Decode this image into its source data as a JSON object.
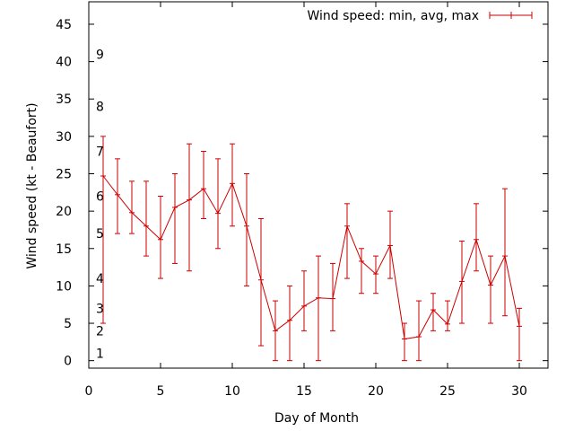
{
  "chart_data": {
    "type": "line",
    "xlabel": "Day of Month",
    "ylabel": "Wind speed (kt - Beaufort)",
    "xlim": [
      0,
      32
    ],
    "ylim": [
      -1,
      48
    ],
    "xticks": [
      0,
      5,
      10,
      15,
      20,
      25,
      30
    ],
    "yticks": [
      0,
      5,
      10,
      15,
      20,
      25,
      30,
      35,
      40,
      45
    ],
    "grid": false,
    "legend_position": "top-right",
    "series_color": "#cc0000",
    "beaufort_scale": [
      {
        "label": "1",
        "y": 1
      },
      {
        "label": "2",
        "y": 4
      },
      {
        "label": "3",
        "y": 7
      },
      {
        "label": "4",
        "y": 11
      },
      {
        "label": "5",
        "y": 17
      },
      {
        "label": "6",
        "y": 22
      },
      {
        "label": "7",
        "y": 28
      },
      {
        "label": "8",
        "y": 34
      },
      {
        "label": "9",
        "y": 41
      }
    ],
    "series": [
      {
        "name": "Wind speed: min, avg, max",
        "points": [
          {
            "x": 1,
            "avg": 24.7,
            "min": 5,
            "max": 30
          },
          {
            "x": 2,
            "avg": 22.2,
            "min": 17,
            "max": 27
          },
          {
            "x": 3,
            "avg": 19.8,
            "min": 17,
            "max": 24
          },
          {
            "x": 4,
            "avg": 18.0,
            "min": 14,
            "max": 24
          },
          {
            "x": 5,
            "avg": 16.2,
            "min": 11,
            "max": 22
          },
          {
            "x": 6,
            "avg": 20.5,
            "min": 13,
            "max": 25
          },
          {
            "x": 7,
            "avg": 21.5,
            "min": 12,
            "max": 29
          },
          {
            "x": 8,
            "avg": 23.0,
            "min": 19,
            "max": 28
          },
          {
            "x": 9,
            "avg": 19.7,
            "min": 15,
            "max": 27
          },
          {
            "x": 10,
            "avg": 23.7,
            "min": 18,
            "max": 29
          },
          {
            "x": 11,
            "avg": 18.0,
            "min": 10,
            "max": 25
          },
          {
            "x": 12,
            "avg": 10.8,
            "min": 2,
            "max": 19
          },
          {
            "x": 13,
            "avg": 4.0,
            "min": 0,
            "max": 8
          },
          {
            "x": 14,
            "avg": 5.4,
            "min": 0,
            "max": 10
          },
          {
            "x": 15,
            "avg": 7.3,
            "min": 4,
            "max": 12
          },
          {
            "x": 16,
            "avg": 8.4,
            "min": 0,
            "max": 14
          },
          {
            "x": 17,
            "avg": 8.3,
            "min": 4,
            "max": 13
          },
          {
            "x": 18,
            "avg": 18.0,
            "min": 11,
            "max": 21
          },
          {
            "x": 19,
            "avg": 13.3,
            "min": 9,
            "max": 15
          },
          {
            "x": 20,
            "avg": 11.6,
            "min": 9,
            "max": 14
          },
          {
            "x": 21,
            "avg": 15.4,
            "min": 11,
            "max": 20
          },
          {
            "x": 22,
            "avg": 2.9,
            "min": 0,
            "max": 5
          },
          {
            "x": 23,
            "avg": 3.2,
            "min": 0,
            "max": 8
          },
          {
            "x": 24,
            "avg": 6.8,
            "min": 4,
            "max": 9
          },
          {
            "x": 25,
            "avg": 4.9,
            "min": 4,
            "max": 8
          },
          {
            "x": 26,
            "avg": 10.6,
            "min": 5,
            "max": 16
          },
          {
            "x": 27,
            "avg": 16.2,
            "min": 12,
            "max": 21
          },
          {
            "x": 28,
            "avg": 10.1,
            "min": 5,
            "max": 14
          },
          {
            "x": 29,
            "avg": 14.0,
            "min": 6,
            "max": 23
          },
          {
            "x": 30,
            "avg": 4.6,
            "min": 0,
            "max": 7
          }
        ]
      }
    ]
  }
}
